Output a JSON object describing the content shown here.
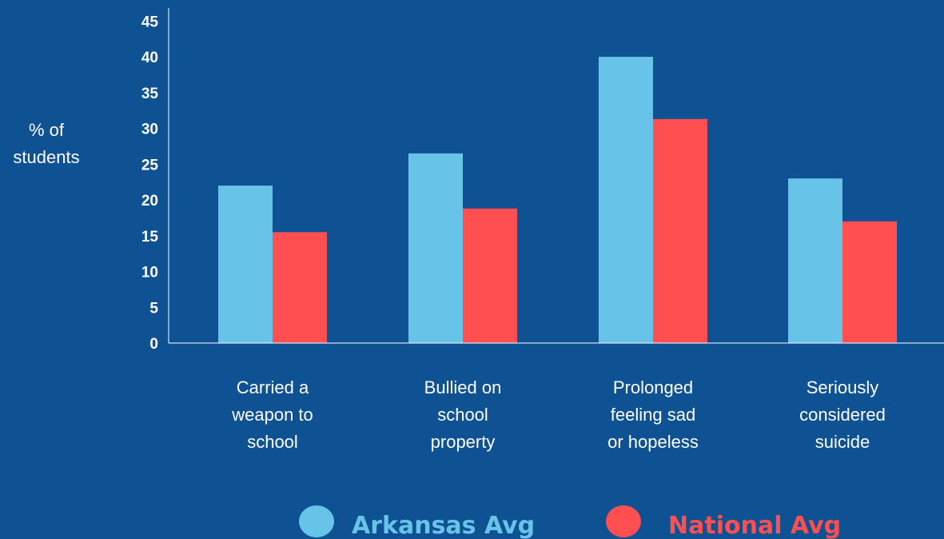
{
  "colors": {
    "background": "#0e5294",
    "arkansas": "#67c4e8",
    "national": "#ff4f51",
    "axis": "#ffffff",
    "text": "#ffffff"
  },
  "chart_data": {
    "type": "bar",
    "ylabel_lines": [
      "% of",
      "students"
    ],
    "ylim": [
      0,
      45
    ],
    "yticks": [
      0,
      5,
      10,
      15,
      20,
      25,
      30,
      35,
      40,
      45
    ],
    "grid": false,
    "legend_position": "bottom",
    "categories": [
      [
        "Carried a",
        "weapon to",
        "school"
      ],
      [
        "Bullied on",
        "school",
        "property"
      ],
      [
        "Prolonged",
        "feeling sad",
        "or hopeless"
      ],
      [
        "Seriously",
        "considered",
        "suicide"
      ]
    ],
    "series": [
      {
        "name": "Arkansas Avg",
        "color_key": "arkansas",
        "values": [
          22,
          26.5,
          40,
          23
        ]
      },
      {
        "name": "National Avg",
        "color_key": "national",
        "values": [
          15.5,
          18.8,
          31.3,
          17
        ]
      }
    ]
  }
}
